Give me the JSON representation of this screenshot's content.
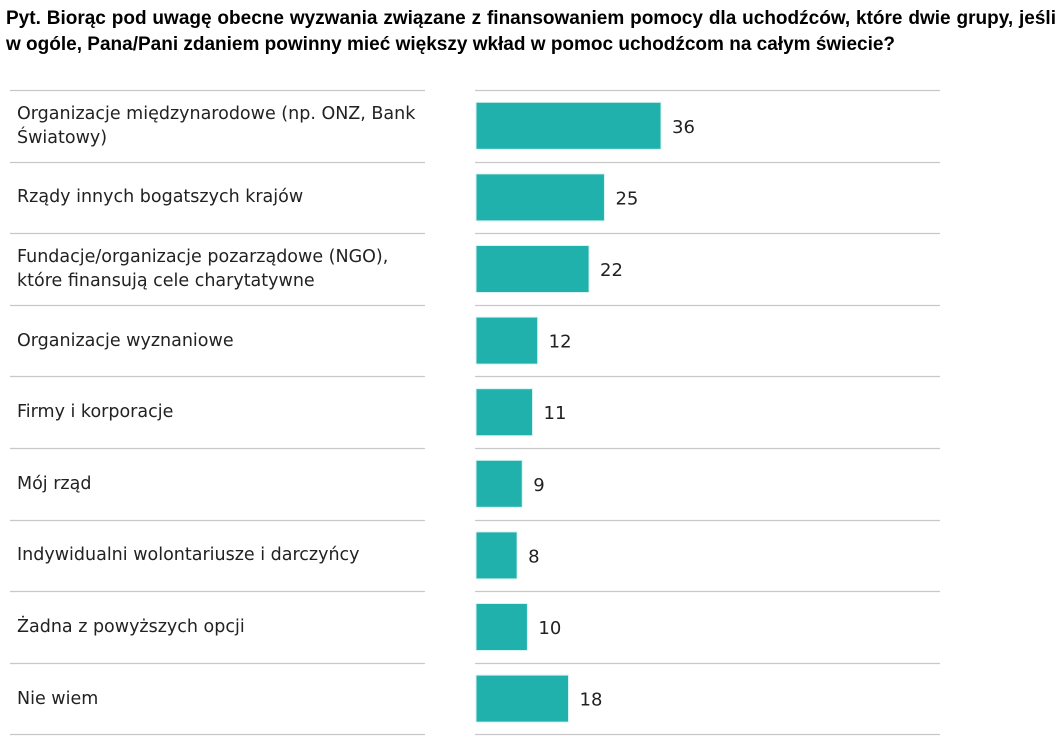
{
  "title": "Pyt. Biorąc pod uwagę obecne wyzwania związane z finansowaniem pomocy dla uchodźców, które dwie grupy, jeśli w ogóle, Pana/Pani zdaniem powinny mieć większy wkład w pomoc uchodźcom na całym świecie?",
  "chart_data": {
    "type": "bar",
    "orientation": "horizontal",
    "title": "Pyt. Biorąc pod uwagę obecne wyzwania związane z finansowaniem pomocy dla uchodźców, które dwie grupy, jeśli w ogóle, Pana/Pani zdaniem powinny mieć większy wkład w pomoc uchodźcom na całym świecie?",
    "categories": [
      "Organizacje międzynarodowe (np. ONZ, Bank Światowy)",
      "Rządy innych bogatszych krajów",
      "Fundacje/organizacje pozarządowe (NGO), które finansują cele charytatywne",
      "Organizacje wyznaniowe",
      "Firmy i korporacje",
      "Mój rząd",
      "Indywidualni wolontariusze i darczyńcy",
      "Żadna z powyższych opcji",
      "Nie wiem"
    ],
    "values": [
      36,
      25,
      22,
      12,
      11,
      9,
      8,
      10,
      18
    ],
    "xlabel": "",
    "ylabel": "",
    "xlim": [
      0,
      36
    ],
    "grid": false,
    "bar_color": "#20b1ad"
  }
}
